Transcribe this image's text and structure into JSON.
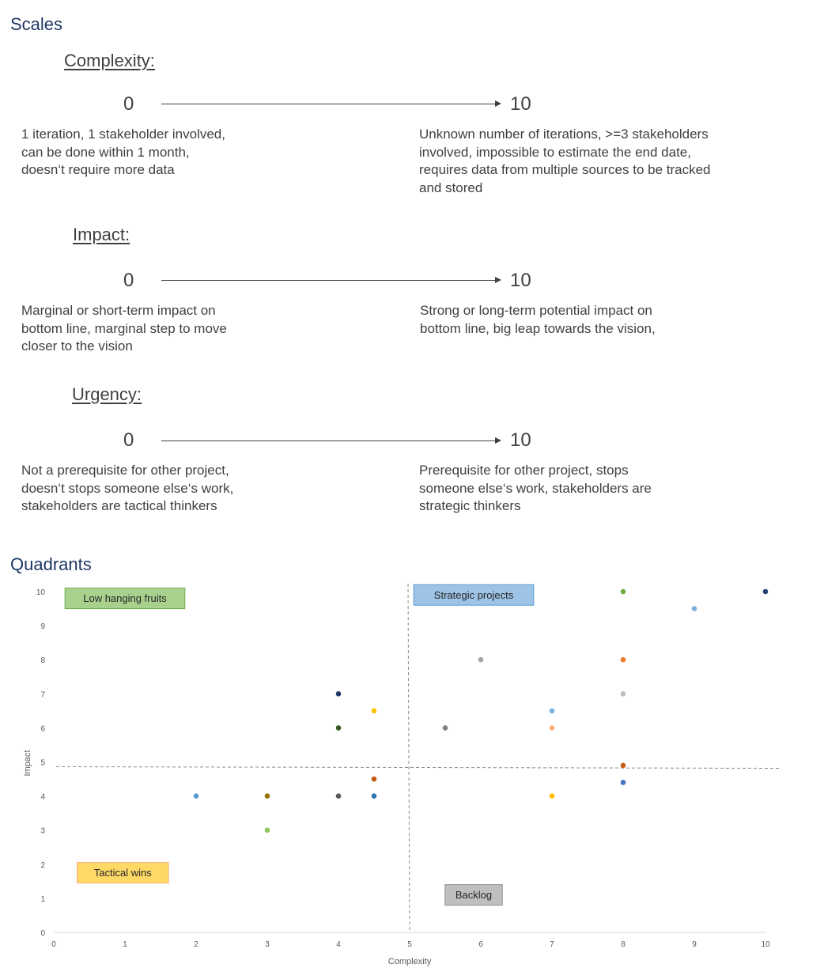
{
  "sections": {
    "scales": "Scales",
    "quadrants": "Quadrants"
  },
  "scales": [
    {
      "title": "Complexity:",
      "min": "0",
      "max": "10",
      "low": "1 iteration, 1 stakeholder involved,\n can be done within 1 month,\ndoesn‘t require more data",
      "high": "Unknown number of iterations, >=3 stakeholders\ninvolved, impossible to estimate the end date,\nrequires data from multiple sources to be tracked\nand stored"
    },
    {
      "title": "Impact:",
      "min": "0",
      "max": "10",
      "low": "Marginal or short-term impact on\nbottom line, marginal step to move\ncloser to the vision",
      "high": "Strong or long-term potential impact on\nbottom line,  big leap towards the vision,"
    },
    {
      "title": "Urgency:",
      "min": "0",
      "max": "10",
      "low": "Not a prerequisite for other project,\ndoesn‘t stops someone else‘s work,\nstakeholders are tactical thinkers",
      "high": "Prerequisite for other project, stops\nsomeone else‘s work, stakeholders are\nstrategic thinkers"
    }
  ],
  "chart_data": {
    "type": "scatter",
    "xlabel": "Complexity",
    "ylabel": "Impact",
    "xlim": [
      0,
      10
    ],
    "ylim": [
      0,
      10
    ],
    "xticks": [
      "0",
      "1",
      "2",
      "3",
      "4",
      "5",
      "6",
      "7",
      "8",
      "9",
      "10"
    ],
    "yticks": [
      "0",
      "1",
      "2",
      "3",
      "4",
      "5",
      "6",
      "7",
      "8",
      "9",
      "10"
    ],
    "dividers": {
      "x": 5,
      "y": 5
    },
    "quadrant_labels": [
      {
        "text": "Low hanging fruits",
        "x": 1,
        "y": 9.8,
        "fill": "#a9d18e",
        "stroke": "#70ad47"
      },
      {
        "text": "Strategic projects",
        "x": 5.9,
        "y": 9.9,
        "fill": "#9dc3e6",
        "stroke": "#5b9bd5"
      },
      {
        "text": "Tactical wins",
        "x": 0.97,
        "y": 1.75,
        "fill": "#ffd966",
        "stroke": "#f4b183"
      },
      {
        "text": "Backlog",
        "x": 5.9,
        "y": 1.1,
        "fill": "#bfbfbf",
        "stroke": "#8c8c8c"
      }
    ],
    "points": [
      {
        "x": 2,
        "y": 4,
        "color": "#5b9bd5"
      },
      {
        "x": 3,
        "y": 4,
        "color": "#997300"
      },
      {
        "x": 3,
        "y": 3,
        "color": "#8fc55f"
      },
      {
        "x": 4,
        "y": 7,
        "color": "#1f3864"
      },
      {
        "x": 4,
        "y": 6,
        "color": "#375623"
      },
      {
        "x": 4,
        "y": 4,
        "color": "#595959"
      },
      {
        "x": 4.5,
        "y": 6.5,
        "color": "#ffc000"
      },
      {
        "x": 4.5,
        "y": 4.5,
        "color": "#c55a11"
      },
      {
        "x": 4.5,
        "y": 4,
        "color": "#2e75b6"
      },
      {
        "x": 5.5,
        "y": 6,
        "color": "#7f7f7f"
      },
      {
        "x": 6,
        "y": 8,
        "color": "#a5a5a5"
      },
      {
        "x": 7,
        "y": 6.5,
        "color": "#7fb0dc"
      },
      {
        "x": 7,
        "y": 6,
        "color": "#f4b183"
      },
      {
        "x": 7,
        "y": 4,
        "color": "#ffc000"
      },
      {
        "x": 8,
        "y": 10,
        "color": "#70ad47"
      },
      {
        "x": 8,
        "y": 8,
        "color": "#ed7d31"
      },
      {
        "x": 8,
        "y": 7,
        "color": "#bfbfbf"
      },
      {
        "x": 8,
        "y": 4.9,
        "color": "#c55a11"
      },
      {
        "x": 8,
        "y": 4.4,
        "color": "#4472c4"
      },
      {
        "x": 9,
        "y": 9.5,
        "color": "#7fb0dc"
      },
      {
        "x": 10,
        "y": 10,
        "color": "#264478"
      }
    ]
  }
}
